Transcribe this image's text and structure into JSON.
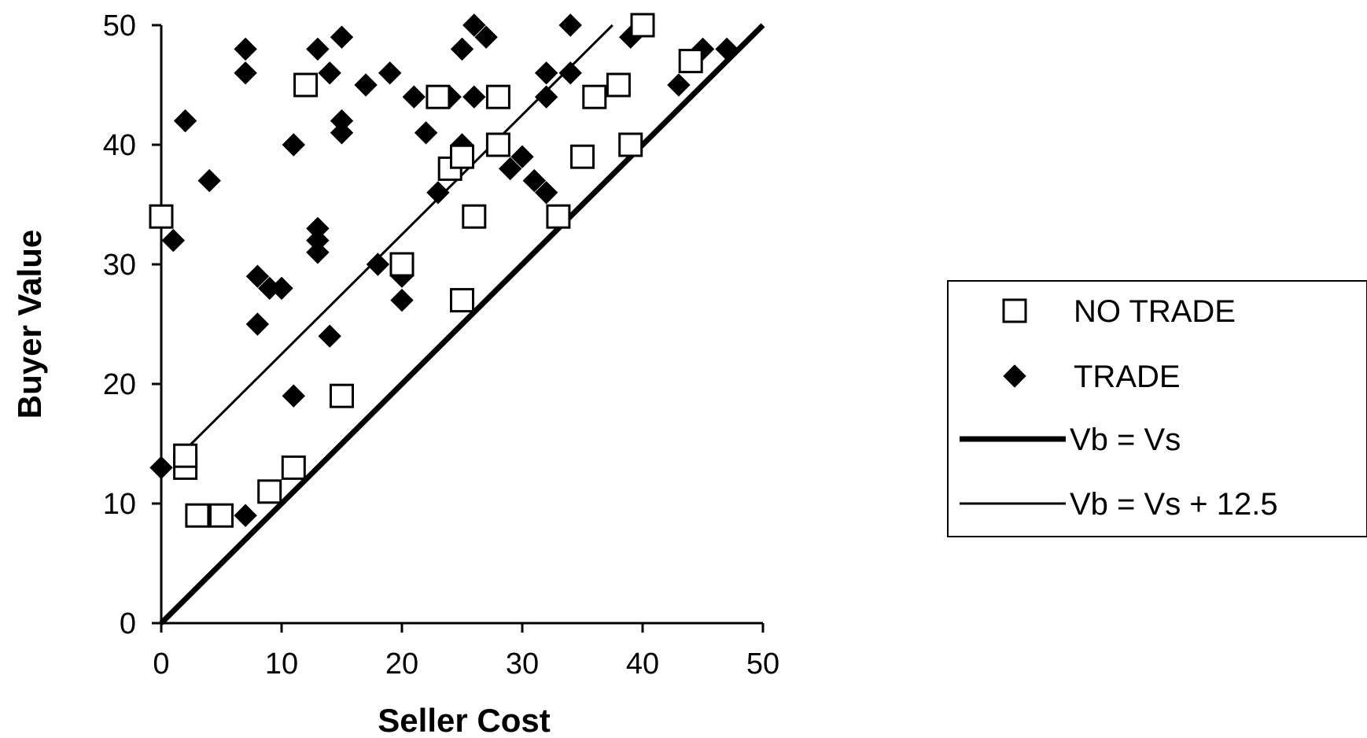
{
  "chart_data": {
    "type": "scatter",
    "xlabel": "Seller Cost",
    "ylabel": "Buyer Value",
    "xlim": [
      0,
      50
    ],
    "ylim": [
      0,
      50
    ],
    "xticks": [
      0,
      10,
      20,
      30,
      40,
      50
    ],
    "yticks": [
      0,
      10,
      20,
      30,
      40,
      50
    ],
    "grid": false,
    "legend_position": "right",
    "series": [
      {
        "name": "NO TRADE",
        "marker": "square-open",
        "points": [
          [
            0,
            34
          ],
          [
            2,
            13
          ],
          [
            2,
            14
          ],
          [
            3,
            9
          ],
          [
            5,
            9
          ],
          [
            9,
            11
          ],
          [
            11,
            13
          ],
          [
            12,
            45
          ],
          [
            15,
            19
          ],
          [
            20,
            30
          ],
          [
            23,
            44
          ],
          [
            24,
            38
          ],
          [
            25,
            39
          ],
          [
            25,
            27
          ],
          [
            26,
            34
          ],
          [
            28,
            40
          ],
          [
            28,
            44
          ],
          [
            33,
            34
          ],
          [
            35,
            39
          ],
          [
            36,
            44
          ],
          [
            38,
            45
          ],
          [
            39,
            40
          ],
          [
            40,
            50
          ],
          [
            44,
            47
          ]
        ]
      },
      {
        "name": "TRADE",
        "marker": "diamond-filled",
        "points": [
          [
            0,
            13
          ],
          [
            1,
            32
          ],
          [
            2,
            42
          ],
          [
            4,
            37
          ],
          [
            7,
            48
          ],
          [
            7,
            46
          ],
          [
            7,
            9
          ],
          [
            8,
            29
          ],
          [
            8,
            25
          ],
          [
            9,
            28
          ],
          [
            10,
            28
          ],
          [
            11,
            40
          ],
          [
            11,
            19
          ],
          [
            13,
            48
          ],
          [
            13,
            33
          ],
          [
            13,
            32
          ],
          [
            13,
            31
          ],
          [
            14,
            46
          ],
          [
            14,
            24
          ],
          [
            15,
            49
          ],
          [
            15,
            42
          ],
          [
            15,
            41
          ],
          [
            17,
            45
          ],
          [
            18,
            30
          ],
          [
            19,
            46
          ],
          [
            20,
            29
          ],
          [
            20,
            27
          ],
          [
            21,
            44
          ],
          [
            22,
            41
          ],
          [
            23,
            36
          ],
          [
            24,
            44
          ],
          [
            25,
            48
          ],
          [
            25,
            40
          ],
          [
            26,
            50
          ],
          [
            26,
            44
          ],
          [
            27,
            49
          ],
          [
            29,
            38
          ],
          [
            30,
            39
          ],
          [
            31,
            37
          ],
          [
            32,
            36
          ],
          [
            32,
            44
          ],
          [
            32,
            46
          ],
          [
            34,
            50
          ],
          [
            34,
            46
          ],
          [
            39,
            49
          ],
          [
            43,
            45
          ],
          [
            45,
            48
          ],
          [
            47,
            48
          ]
        ]
      },
      {
        "name": "Vb = Vs",
        "line": "thick",
        "points": [
          [
            0,
            0
          ],
          [
            50,
            50
          ]
        ]
      },
      {
        "name": "Vb = Vs + 12.5",
        "line": "thin",
        "points": [
          [
            2,
            14.5
          ],
          [
            37.5,
            50
          ]
        ]
      }
    ]
  }
}
